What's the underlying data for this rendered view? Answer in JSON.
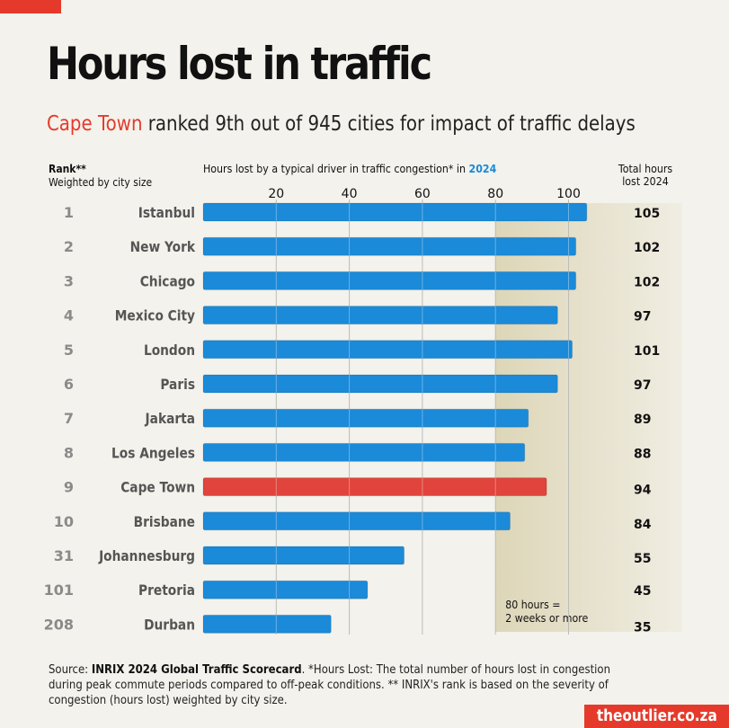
{
  "header": {
    "title": "Hours lost in traffic",
    "subtitle_highlight": "Cape Town",
    "subtitle_rest": " ranked 9th out of 945 cities for impact of traffic delays"
  },
  "columns": {
    "rank_title": "Rank**",
    "rank_subtitle": "Weighted by city size",
    "axis_title_prefix": "Hours lost by a typical driver in traffic congestion* in ",
    "axis_title_year": "2024",
    "total_line1": "Total hours",
    "total_line2": "lost 2024"
  },
  "colors": {
    "bar": "#1b8ad8",
    "highlight_bar": "#e0443c",
    "accent": "#e53a2b",
    "background": "#f3f2ec",
    "shade": "#ddd6b8"
  },
  "chart_data": {
    "type": "bar",
    "orientation": "horizontal",
    "title": "Hours lost in traffic",
    "xlabel": "Hours lost by a typical driver in traffic congestion* in 2024",
    "ylabel": "Rank** Weighted by city size",
    "xlim": [
      0,
      110
    ],
    "xticks": [
      20,
      40,
      60,
      80,
      100
    ],
    "grid": true,
    "highlight_category": "Cape Town",
    "shaded_region": {
      "from": 80,
      "label_line1": "80 hours =",
      "label_line2": "2 weeks or more"
    },
    "categories": [
      "Istanbul",
      "New York",
      "Chicago",
      "Mexico City",
      "London",
      "Paris",
      "Jakarta",
      "Los Angeles",
      "Cape Town",
      "Brisbane",
      "Johannesburg",
      "Pretoria",
      "Durban"
    ],
    "ranks": [
      "1",
      "2",
      "3",
      "4",
      "5",
      "6",
      "7",
      "8",
      "9",
      "10",
      "31",
      "101",
      "208"
    ],
    "values": [
      105,
      102,
      102,
      97,
      101,
      97,
      89,
      88,
      94,
      84,
      55,
      45,
      35
    ]
  },
  "footer": {
    "source_label": "Source: ",
    "source_name": "INRIX 2024 Global Traffic Scorecard",
    "note": ". *Hours Lost: The total number of hours lost in congestion during peak commute periods compared to off-peak conditions. ** INRIX's rank is based on the severity of congestion (hours lost) weighted by city size.",
    "logo": "theoutlier.co.za"
  }
}
